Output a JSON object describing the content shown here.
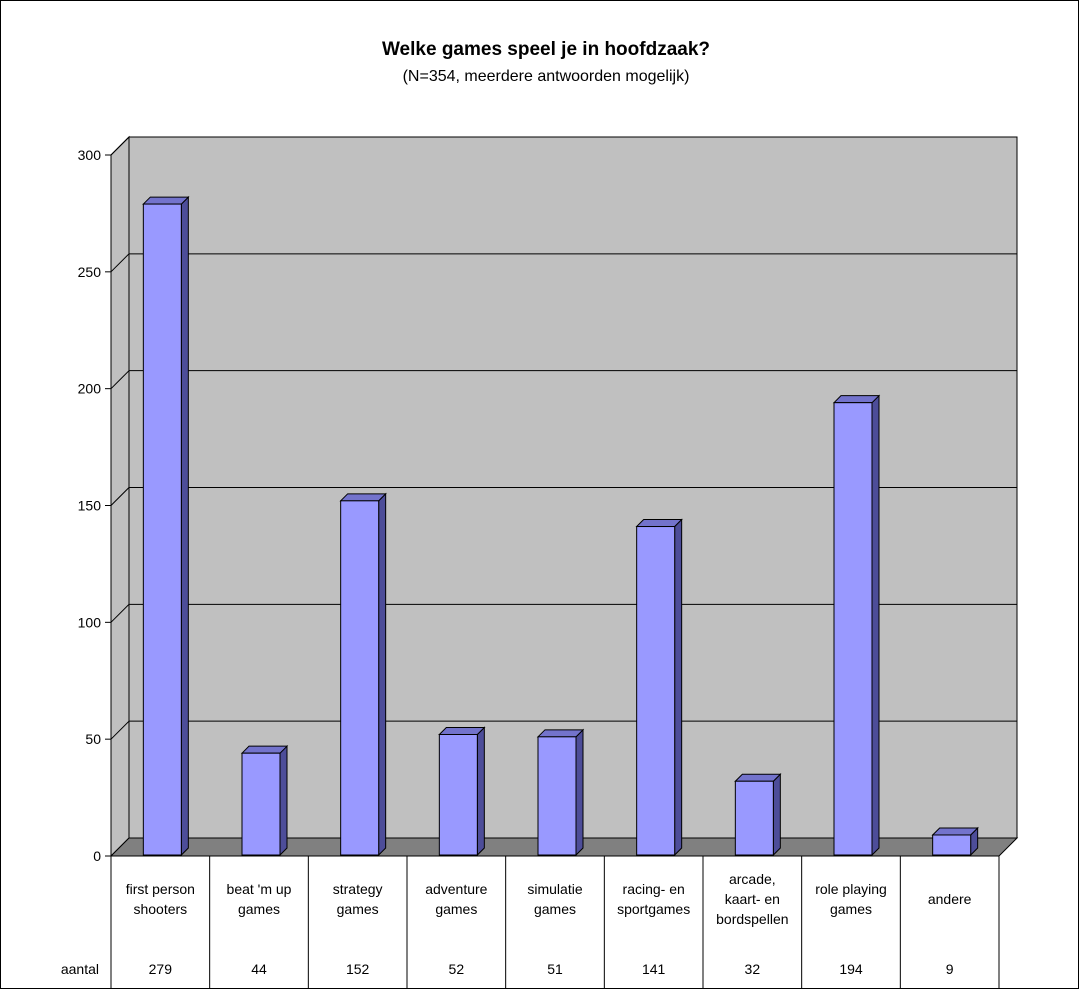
{
  "chart_data": {
    "type": "bar",
    "title": "Welke games speel je in hoofdzaak?",
    "subtitle": "(N=354, meerdere antwoorden mogelijk)",
    "categories": [
      [
        "first person",
        "shooters"
      ],
      [
        "beat 'm up",
        "games"
      ],
      [
        "strategy",
        "games"
      ],
      [
        "adventure",
        "games"
      ],
      [
        "simulatie",
        "games"
      ],
      [
        "racing- en",
        "sportgames"
      ],
      [
        "arcade,",
        "kaart- en",
        "bordspellen"
      ],
      [
        "role playing",
        "games"
      ],
      [
        "andere"
      ]
    ],
    "series": [
      {
        "name": "aantal",
        "values": [
          279,
          44,
          152,
          52,
          51,
          141,
          32,
          194,
          9
        ]
      }
    ],
    "yticks": [
      0,
      50,
      100,
      150,
      200,
      250,
      300
    ],
    "ylim": [
      0,
      300
    ],
    "grid": true,
    "legend": "none",
    "data_table": true,
    "colors": {
      "bar_front": "#9999ff",
      "bar_side": "#4d4d99",
      "bar_top": "#7373cc",
      "wall": "#c0c0c0",
      "floor": "#808080"
    }
  }
}
